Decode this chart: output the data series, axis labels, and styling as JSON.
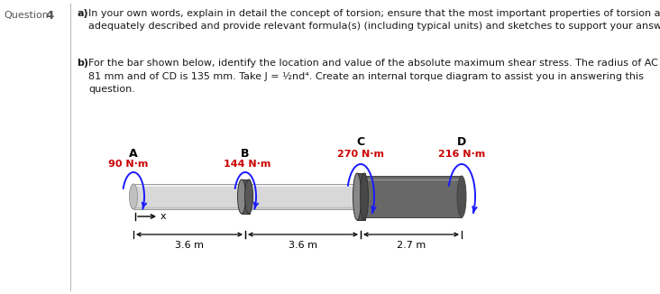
{
  "title_label": "Question 4",
  "part_a_bold": "a)",
  "part_a_rest": " In your own words, explain in detail the concept of torsion; ensure that the most important properties of torsion are\nadequately described and provide relevant formula(s) (including typical units) and sketches to support your answer.",
  "part_b_bold": "b)",
  "part_b_rest": " For the bar shown below, identify the location and value of the absolute maximum shear stress. The radius of AC is\n81 mm and of CD is 135 mm. Take J = ½nd⁴. Create an internal torque diagram to assist you in answering this\nquestion.",
  "points": [
    "A",
    "B",
    "C",
    "D"
  ],
  "torque_labels": [
    "90 N·m",
    "144 N·m",
    "270 N·m",
    "216 N·m"
  ],
  "distances": [
    "3.6 m",
    "3.6 m",
    "2.7 m"
  ],
  "torque_color": "#cc0000",
  "arrow_color": "#1a1aff",
  "text_color": "#1a1a1a",
  "bg_color": "#ffffff",
  "shaft_thin_face": "#d8d8d8",
  "shaft_thin_edge": "#999999",
  "shaft_thick_face": "#686868",
  "shaft_thick_edge": "#444444",
  "collar_face": "#555555",
  "collar_light": "#888888",
  "endcap_face": "#c0c0c0",
  "dim_color": "#111111",
  "divider_color": "#bbbbbb",
  "question_color": "#555555"
}
